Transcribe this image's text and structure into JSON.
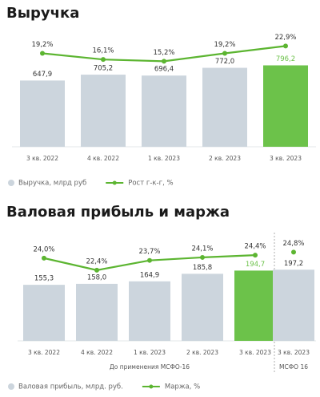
{
  "chart_data": [
    {
      "type": "bar",
      "title": "Выручка",
      "categories": [
        "3 кв. 2022",
        "4 кв. 2022",
        "1 кв. 2023",
        "2 кв. 2023",
        "3 кв. 2023"
      ],
      "series": [
        {
          "name": "Выручка, млрд руб",
          "color": "#ccd5dd",
          "values": [
            647.9,
            705.2,
            696.4,
            772.0,
            796.2
          ],
          "value_labels": [
            "647,9",
            "705,2",
            "696,4",
            "772,0",
            "796,2"
          ]
        },
        {
          "name": "Рост г-к-г, %",
          "color": "#5cb531",
          "type": "line",
          "axis": "y2",
          "values": [
            19.2,
            16.1,
            15.2,
            19.2,
            22.9
          ],
          "value_labels": [
            "19,2%",
            "16,1%",
            "15,2%",
            "19,2%",
            "22,9%"
          ]
        }
      ],
      "highlight_index": 4,
      "highlight_color": "#6cc24a",
      "ylim": [
        0,
        1200
      ],
      "y2lim": [
        -28,
        34
      ]
    },
    {
      "type": "bar",
      "title": "Валовая прибыль и маржа",
      "categories": [
        "3 кв. 2022",
        "4 кв. 2022",
        "1 кв. 2023",
        "2 кв. 2023",
        "3 кв. 2023",
        "3 кв. 2023"
      ],
      "groups": [
        {
          "label": "До применения МСФО-16",
          "size": 5
        },
        {
          "label": "МСФО 16",
          "size": 1
        }
      ],
      "series": [
        {
          "name": "Валовая прибыль, млрд. руб.",
          "color": "#ccd5dd",
          "values": [
            155.3,
            158.0,
            164.9,
            185.8,
            194.7,
            197.2
          ],
          "value_labels": [
            "155,3",
            "158,0",
            "164,9",
            "185,8",
            "194,7",
            "197,2"
          ]
        },
        {
          "name": "Маржа, %",
          "color": "#5cb531",
          "type": "line",
          "axis": "y2",
          "values": [
            24.0,
            22.4,
            23.7,
            24.1,
            24.4,
            24.8
          ],
          "value_labels": [
            "24,0%",
            "22,4%",
            "23,7%",
            "24,1%",
            "24,4%",
            "24,8%"
          ]
        }
      ],
      "highlight_index": 4,
      "highlight_color": "#6cc24a",
      "ylim": [
        0,
        300
      ],
      "y2lim": [
        13,
        27.4
      ]
    }
  ]
}
